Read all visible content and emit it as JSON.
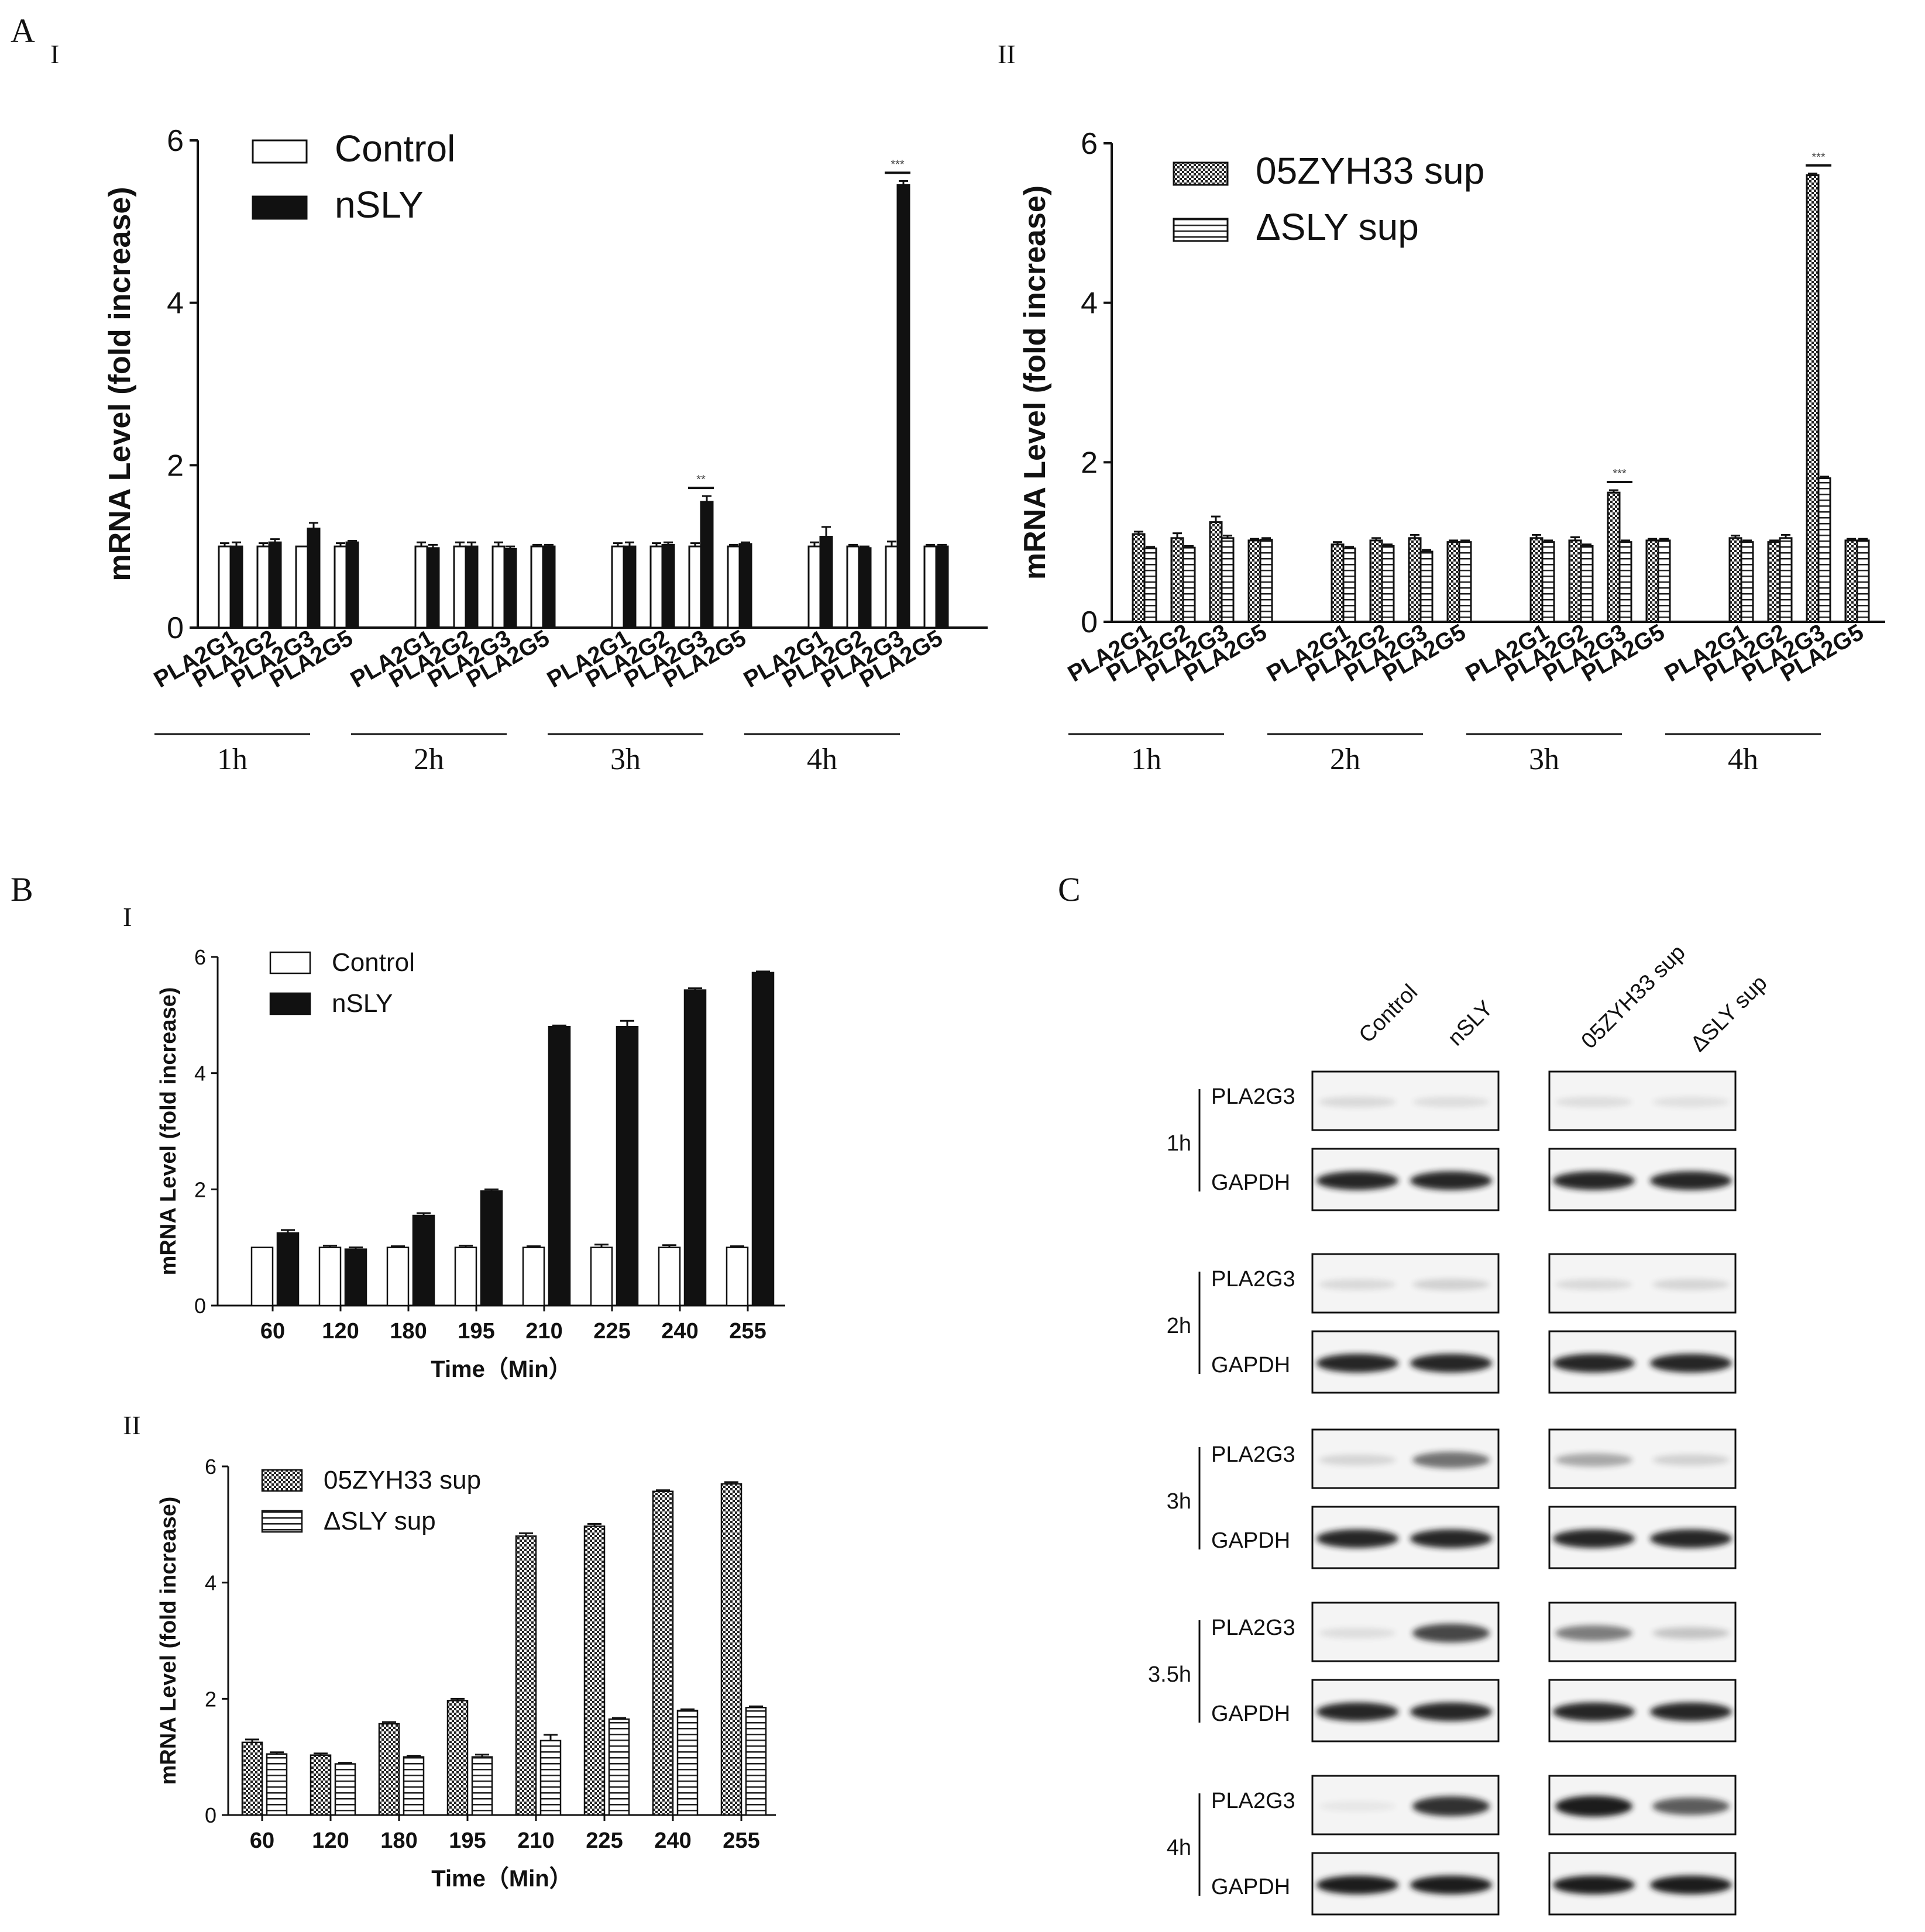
{
  "colors": {
    "ink": "#111111",
    "control": "#ffffff",
    "nsly": "#111111",
    "band": "#1e1e1e"
  },
  "panel_letters": {
    "A": "A",
    "A_I": "I",
    "A_II": "II",
    "B": "B",
    "B_I": "I",
    "B_II": "II",
    "C": "C"
  },
  "chart_data": [
    {
      "id": "A-I",
      "type": "bar",
      "ylabel": "mRNA Level (fold increase)",
      "ylim": [
        0,
        6
      ],
      "yticks": [
        0,
        2,
        4,
        6
      ],
      "groups": [
        "1h",
        "2h",
        "3h",
        "4h"
      ],
      "categories": [
        "PLA2G1",
        "PLA2G2",
        "PLA2G3",
        "PLA2G5"
      ],
      "legend": [
        "Control",
        "nSLY"
      ],
      "significance": [
        {
          "group": "3h",
          "category": "PLA2G3",
          "label": "**"
        },
        {
          "group": "4h",
          "category": "PLA2G3",
          "label": "***"
        }
      ],
      "series": [
        {
          "name": "Control",
          "fill": "white",
          "values": [
            [
              1.0,
              1.0,
              1.0,
              1.0
            ],
            [
              1.0,
              1.0,
              1.0,
              1.0
            ],
            [
              1.0,
              1.0,
              1.0,
              1.0
            ],
            [
              1.0,
              1.0,
              1.0,
              1.0
            ]
          ],
          "errors": [
            [
              0.04,
              0.04,
              0.0,
              0.04
            ],
            [
              0.05,
              0.05,
              0.05,
              0.02
            ],
            [
              0.04,
              0.04,
              0.04,
              0.02
            ],
            [
              0.05,
              0.02,
              0.06,
              0.02
            ]
          ]
        },
        {
          "name": "nSLY",
          "fill": "black",
          "values": [
            [
              1.0,
              1.05,
              1.22,
              1.05
            ],
            [
              0.98,
              1.0,
              0.97,
              1.0
            ],
            [
              1.0,
              1.02,
              1.55,
              1.03
            ],
            [
              1.12,
              0.98,
              5.45,
              1.0
            ]
          ],
          "errors": [
            [
              0.05,
              0.04,
              0.07,
              0.02
            ],
            [
              0.04,
              0.05,
              0.03,
              0.02
            ],
            [
              0.05,
              0.03,
              0.07,
              0.02
            ],
            [
              0.12,
              0.02,
              0.05,
              0.02
            ]
          ]
        }
      ]
    },
    {
      "id": "A-II",
      "type": "bar",
      "ylabel": "mRNA Level (fold increase)",
      "ylim": [
        0,
        6
      ],
      "yticks": [
        0,
        2,
        4,
        6
      ],
      "groups": [
        "1h",
        "2h",
        "3h",
        "4h"
      ],
      "categories": [
        "PLA2G1",
        "PLA2G2",
        "PLA2G3",
        "PLA2G5"
      ],
      "legend": [
        "05ZYH33 sup",
        "ΔSLY sup"
      ],
      "significance": [
        {
          "group": "3h",
          "category": "PLA2G3",
          "label": "***"
        },
        {
          "group": "4h",
          "category": "PLA2G3",
          "label": "***"
        }
      ],
      "series": [
        {
          "name": "05ZYH33 sup",
          "fill": "check",
          "values": [
            [
              1.1,
              1.05,
              1.25,
              1.02
            ],
            [
              0.97,
              1.02,
              1.05,
              1.0
            ],
            [
              1.05,
              1.02,
              1.62,
              1.02
            ],
            [
              1.05,
              1.0,
              5.6,
              1.02
            ]
          ],
          "errors": [
            [
              0.03,
              0.06,
              0.07,
              0.02
            ],
            [
              0.03,
              0.03,
              0.04,
              0.02
            ],
            [
              0.04,
              0.04,
              0.03,
              0.02
            ],
            [
              0.03,
              0.02,
              0.02,
              0.02
            ]
          ]
        },
        {
          "name": "ΔSLY sup",
          "fill": "hstripe",
          "values": [
            [
              0.92,
              0.93,
              1.05,
              1.03
            ],
            [
              0.92,
              0.95,
              0.88,
              1.0
            ],
            [
              1.0,
              0.95,
              1.0,
              1.02
            ],
            [
              1.0,
              1.05,
              1.8,
              1.02
            ]
          ],
          "errors": [
            [
              0.02,
              0.02,
              0.03,
              0.02
            ],
            [
              0.02,
              0.02,
              0.02,
              0.02
            ],
            [
              0.02,
              0.02,
              0.02,
              0.02
            ],
            [
              0.02,
              0.04,
              0.02,
              0.02
            ]
          ]
        }
      ]
    },
    {
      "id": "B-I",
      "type": "bar",
      "xlabel": "Time（Min）",
      "ylabel": "mRNA Level (fold increase)",
      "ylim": [
        0,
        6
      ],
      "yticks": [
        0,
        2,
        4,
        6
      ],
      "categories": [
        "60",
        "120",
        "180",
        "195",
        "210",
        "225",
        "240",
        "255"
      ],
      "legend": [
        "Control",
        "nSLY"
      ],
      "series": [
        {
          "name": "Control",
          "fill": "white",
          "values": [
            1.0,
            1.0,
            1.0,
            1.0,
            1.0,
            1.0,
            1.0,
            1.0
          ],
          "errors": [
            0.0,
            0.03,
            0.02,
            0.03,
            0.02,
            0.05,
            0.04,
            0.02
          ]
        },
        {
          "name": "nSLY",
          "fill": "black",
          "values": [
            1.25,
            0.97,
            1.55,
            1.97,
            4.8,
            4.8,
            5.43,
            5.73
          ],
          "errors": [
            0.05,
            0.03,
            0.04,
            0.03,
            0.02,
            0.1,
            0.03,
            0.02
          ]
        }
      ]
    },
    {
      "id": "B-II",
      "type": "bar",
      "xlabel": "Time（Min）",
      "ylabel": "mRNA Level (fold increase)",
      "ylim": [
        0,
        6
      ],
      "yticks": [
        0,
        2,
        4,
        6
      ],
      "categories": [
        "60",
        "120",
        "180",
        "195",
        "210",
        "225",
        "240",
        "255"
      ],
      "legend": [
        "05ZYH33 sup",
        "ΔSLY sup"
      ],
      "series": [
        {
          "name": "05ZYH33 sup",
          "fill": "check",
          "values": [
            1.25,
            1.03,
            1.57,
            1.97,
            4.8,
            4.97,
            5.57,
            5.7
          ],
          "errors": [
            0.05,
            0.03,
            0.03,
            0.03,
            0.05,
            0.04,
            0.02,
            0.03
          ]
        },
        {
          "name": "ΔSLY sup",
          "fill": "hstripe",
          "values": [
            1.05,
            0.88,
            1.0,
            1.0,
            1.28,
            1.65,
            1.8,
            1.85
          ],
          "errors": [
            0.03,
            0.02,
            0.02,
            0.04,
            0.1,
            0.02,
            0.02,
            0.02
          ]
        }
      ]
    }
  ],
  "western_blot": {
    "columns_left": [
      "Control",
      "nSLY"
    ],
    "columns_right": [
      "05ZYH33 sup",
      "ΔSLY sup"
    ],
    "rows": [
      {
        "time": "1h",
        "target": "PLA2G3",
        "loading": "GAPDH",
        "target_intensity": [
          0.12,
          0.1,
          0.1,
          0.09
        ],
        "loading_intensity": [
          0.95,
          0.95,
          0.95,
          0.95
        ]
      },
      {
        "time": "2h",
        "target": "PLA2G3",
        "loading": "GAPDH",
        "target_intensity": [
          0.12,
          0.16,
          0.12,
          0.14
        ],
        "loading_intensity": [
          0.95,
          0.95,
          0.95,
          0.95
        ]
      },
      {
        "time": "3h",
        "target": "PLA2G3",
        "loading": "GAPDH",
        "target_intensity": [
          0.14,
          0.6,
          0.35,
          0.16
        ],
        "loading_intensity": [
          0.95,
          0.95,
          0.95,
          0.95
        ]
      },
      {
        "time": "3.5h",
        "target": "PLA2G3",
        "loading": "GAPDH",
        "target_intensity": [
          0.1,
          0.8,
          0.55,
          0.22
        ],
        "loading_intensity": [
          0.95,
          0.95,
          0.95,
          0.95
        ]
      },
      {
        "time": "4h",
        "target": "PLA2G3",
        "loading": "GAPDH",
        "target_intensity": [
          0.06,
          0.9,
          1.0,
          0.7
        ],
        "loading_intensity": [
          1.0,
          1.0,
          1.0,
          1.0
        ]
      }
    ]
  }
}
